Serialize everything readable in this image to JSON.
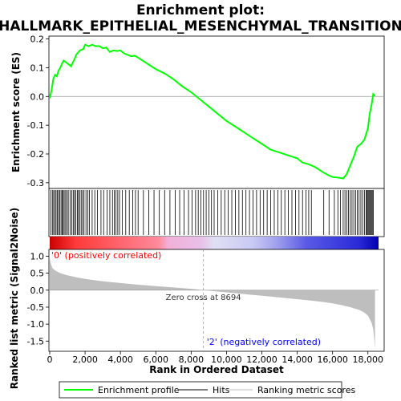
{
  "title_line1": "Enrichment plot:",
  "title_line2": "HALLMARK_EPITHELIAL_MESENCHYMAL_TRANSITION",
  "colors": {
    "profile": "#00ff00",
    "hits": "#000000",
    "metric_fill": "#bebebe",
    "zero_line": "#999999",
    "pos_label": "#ff0000",
    "neg_label": "#0000ff",
    "heat_pos": "#ff0000",
    "heat_neg": "#0000ff"
  },
  "chart_data": [
    {
      "type": "line",
      "name": "enrichment-profile",
      "ylabel": "Enrichment score (ES)",
      "xlim": [
        0,
        18600
      ],
      "ylim": [
        -0.32,
        0.21
      ],
      "yticks": [
        0.2,
        0.1,
        0.0,
        -0.1,
        -0.2,
        -0.3
      ],
      "ytick_labels": [
        "0.2",
        "0.1",
        "0.0",
        "-0.1",
        "-0.2",
        "-0.3"
      ],
      "grid": false,
      "series": [
        {
          "x": [
            0,
            100,
            200,
            300,
            400,
            500,
            600,
            700,
            800,
            1000,
            1200,
            1400,
            1500,
            1700,
            1900,
            2000,
            2200,
            2400,
            2600,
            2800,
            3000,
            3200,
            3400,
            3600,
            3800,
            4000,
            4200,
            4400,
            4600,
            4800,
            5000,
            5500,
            6000,
            6500,
            7000,
            7500,
            8000,
            8500,
            9000,
            9500,
            10000,
            10500,
            11000,
            11500,
            12000,
            12500,
            13000,
            13500,
            14000,
            14300,
            14600,
            15000,
            15500,
            15800,
            16000,
            16300,
            16600,
            16800,
            17000,
            17200,
            17400,
            17600,
            17800,
            18000,
            18100,
            18200,
            18300,
            18400
          ],
          "y": [
            -0.005,
            0.02,
            0.06,
            0.075,
            0.07,
            0.09,
            0.1,
            0.115,
            0.125,
            0.115,
            0.105,
            0.13,
            0.145,
            0.16,
            0.165,
            0.18,
            0.175,
            0.18,
            0.175,
            0.175,
            0.168,
            0.17,
            0.155,
            0.16,
            0.158,
            0.16,
            0.15,
            0.145,
            0.14,
            0.142,
            0.135,
            0.115,
            0.095,
            0.08,
            0.06,
            0.035,
            0.015,
            -0.01,
            -0.035,
            -0.06,
            -0.085,
            -0.105,
            -0.125,
            -0.145,
            -0.165,
            -0.185,
            -0.195,
            -0.205,
            -0.215,
            -0.23,
            -0.235,
            -0.245,
            -0.265,
            -0.275,
            -0.28,
            -0.282,
            -0.285,
            -0.27,
            -0.24,
            -0.21,
            -0.175,
            -0.165,
            -0.15,
            -0.11,
            -0.06,
            -0.03,
            0.008,
            0.002
          ]
        }
      ]
    },
    {
      "type": "scatter",
      "name": "hits",
      "hit_positions": [
        60,
        150,
        220,
        300,
        360,
        430,
        500,
        560,
        640,
        700,
        760,
        820,
        900,
        980,
        1050,
        1150,
        1250,
        1330,
        1400,
        1480,
        1560,
        1620,
        1700,
        1780,
        1860,
        1940,
        2050,
        2150,
        2250,
        2400,
        2550,
        2700,
        2900,
        3050,
        3250,
        3400,
        3550,
        3650,
        3750,
        3850,
        3950,
        4100,
        4300,
        4500,
        4700,
        4850,
        5000,
        5300,
        5600,
        5900,
        6200,
        6500,
        6800,
        7100,
        7350,
        7600,
        7850,
        8050,
        8250,
        8400,
        8550,
        8700,
        8850,
        9000,
        9150,
        9300,
        9500,
        9700,
        9900,
        10100,
        10300,
        10500,
        10700,
        10900,
        11100,
        11300,
        11500,
        11700,
        11900,
        12100,
        12300,
        12500,
        12700,
        12900,
        13100,
        13300,
        13500,
        13700,
        13900,
        14100,
        14300,
        14500,
        14650,
        14800,
        15500,
        15800,
        16100,
        16300,
        16450,
        16600,
        16700,
        16800,
        16900,
        17000,
        17100,
        17200,
        17300,
        17400,
        17500,
        17600,
        17700,
        17800,
        17900,
        17950,
        18000,
        18050,
        18100,
        18150,
        18200,
        18250,
        18300
      ]
    },
    {
      "type": "area",
      "name": "ranked-list-metric",
      "xlabel": "Rank in Ordered Dataset",
      "ylabel": "Ranked list metric (Signal2Noise)",
      "xlim": [
        0,
        18600
      ],
      "ylim": [
        -1.8,
        1.2
      ],
      "yticks": [
        1.0,
        0.5,
        0.0,
        -0.5,
        -1.0,
        -1.5
      ],
      "ytick_labels": [
        "1.0",
        "0.5",
        "0.0",
        "-0.5",
        "-1.0",
        "-1.5"
      ],
      "xticks": [
        0,
        2000,
        4000,
        6000,
        8000,
        10000,
        12000,
        14000,
        16000,
        18000
      ],
      "xtick_labels": [
        "0",
        "2,000",
        "4,000",
        "6,000",
        "8,000",
        "10,000",
        "12,000",
        "14,000",
        "16,000",
        "18,000"
      ],
      "series": [
        {
          "x": [
            0,
            50,
            150,
            300,
            600,
            1000,
            1500,
            2000,
            3000,
            4000,
            5000,
            6000,
            7000,
            8000,
            8694,
            9500,
            10500,
            11500,
            12500,
            13500,
            14500,
            15500,
            16000,
            16500,
            17000,
            17500,
            17800,
            18000,
            18200,
            18300,
            18350,
            18400
          ],
          "y": [
            0.95,
            0.8,
            0.65,
            0.58,
            0.5,
            0.44,
            0.38,
            0.33,
            0.26,
            0.21,
            0.16,
            0.12,
            0.08,
            0.04,
            0.0,
            -0.04,
            -0.09,
            -0.14,
            -0.19,
            -0.24,
            -0.29,
            -0.35,
            -0.39,
            -0.44,
            -0.5,
            -0.58,
            -0.66,
            -0.75,
            -0.95,
            -1.15,
            -1.4,
            -1.72
          ]
        }
      ],
      "zero_cross_label": "Zero cross at 8694",
      "zero_cross": 8694,
      "pos_label": "'0' (positively correlated)",
      "neg_label": "'2' (negatively correlated)"
    }
  ],
  "legend": {
    "items": [
      {
        "label": "Enrichment profile",
        "color": "#00ff00"
      },
      {
        "label": "Hits",
        "color": "#000000"
      },
      {
        "label": "Ranking metric scores",
        "color": "#bebebe"
      }
    ]
  }
}
